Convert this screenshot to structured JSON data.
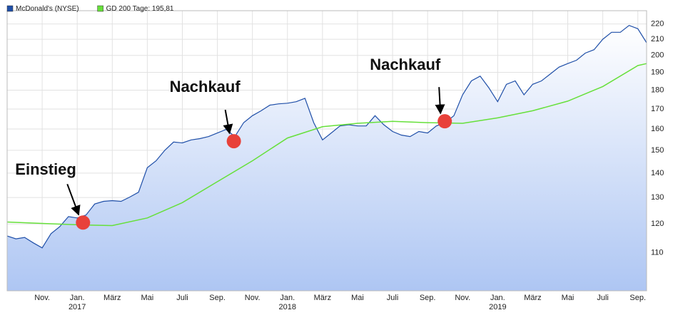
{
  "chart_data": {
    "type": "line",
    "log_scale": true,
    "grid": true,
    "xlim": [
      0,
      36.5
    ],
    "ylim": [
      98,
      229
    ],
    "yticks": [
      110,
      120,
      130,
      140,
      150,
      160,
      170,
      180,
      190,
      200,
      210,
      220
    ],
    "xticks": [
      {
        "value": 2,
        "label": "Nov."
      },
      {
        "value": 4,
        "label": "Jan."
      },
      {
        "value": 6,
        "label": "März"
      },
      {
        "value": 8,
        "label": "Mai"
      },
      {
        "value": 10,
        "label": "Juli"
      },
      {
        "value": 12,
        "label": "Sep."
      },
      {
        "value": 14,
        "label": "Nov."
      },
      {
        "value": 16,
        "label": "Jan."
      },
      {
        "value": 18,
        "label": "März"
      },
      {
        "value": 20,
        "label": "Mai"
      },
      {
        "value": 22,
        "label": "Juli"
      },
      {
        "value": 24,
        "label": "Sep."
      },
      {
        "value": 26,
        "label": "Nov."
      },
      {
        "value": 28,
        "label": "Jan."
      },
      {
        "value": 30,
        "label": "März"
      },
      {
        "value": 32,
        "label": "Mai"
      },
      {
        "value": 34,
        "label": "Juli"
      },
      {
        "value": 36,
        "label": "Sep."
      }
    ],
    "year_labels": [
      {
        "value": 4,
        "label": "2017"
      },
      {
        "value": 16,
        "label": "2018"
      },
      {
        "value": 28,
        "label": "2019"
      }
    ],
    "series": [
      {
        "name": "McDonald's (NYSE)",
        "color": "#1f4fa8",
        "area": true,
        "x": [
          0,
          0.5,
          1,
          1.5,
          2,
          2.5,
          3,
          3.5,
          4,
          4.5,
          5,
          5.5,
          6,
          6.5,
          7,
          7.5,
          8,
          8.5,
          9,
          9.5,
          10,
          10.5,
          11,
          11.5,
          12,
          12.5,
          13,
          13.5,
          14,
          14.5,
          15,
          15.5,
          16,
          16.5,
          17,
          17.5,
          18,
          18.5,
          19,
          19.5,
          20,
          20.5,
          21,
          21.5,
          22,
          22.5,
          23,
          23.5,
          24,
          24.5,
          25,
          25.5,
          26,
          26.5,
          27,
          27.5,
          28,
          28.5,
          29,
          29.5,
          30,
          30.5,
          31,
          31.5,
          32,
          32.5,
          33,
          33.5,
          34,
          34.5,
          35,
          35.5,
          36,
          36.5
        ],
        "values": [
          115.7,
          114.7,
          115.2,
          113.3,
          111.6,
          116.5,
          119,
          122.7,
          122.2,
          123.3,
          127.5,
          128.5,
          128.8,
          128.5,
          130.2,
          132.1,
          142.3,
          145.3,
          150,
          153.8,
          153.4,
          154.8,
          155.4,
          156.4,
          158.1,
          159.8,
          156.4,
          163.1,
          166.6,
          169.1,
          172,
          172.7,
          173,
          173.8,
          175.6,
          163.1,
          154.8,
          158.1,
          161.5,
          162.1,
          161.5,
          161.5,
          166.6,
          162.1,
          158.8,
          157.1,
          156.4,
          158.8,
          158.1,
          161.5,
          163.1,
          166.6,
          177.5,
          185.1,
          187.8,
          181.2,
          173.8,
          183.2,
          185.1,
          177.5,
          183.2,
          185.1,
          189,
          193,
          195.1,
          197.1,
          201.4,
          203.5,
          210,
          214.5,
          214.5,
          219,
          216.8,
          207.8
        ]
      },
      {
        "name": "GD 200 Tage: 195,81",
        "color": "#66e03a",
        "x": [
          0,
          2,
          4,
          6,
          8,
          10,
          12,
          14,
          16,
          18,
          20,
          22,
          24,
          26,
          28,
          30,
          32,
          34,
          36,
          36.5
        ],
        "values": [
          120.7,
          120.2,
          119.7,
          119.4,
          122.2,
          128,
          136.4,
          145.3,
          155.7,
          161.1,
          162.8,
          163.8,
          163.1,
          162.8,
          165.5,
          169.1,
          174.1,
          182,
          193.9,
          195.1
        ]
      }
    ],
    "annotations": [
      {
        "label": "Einstieg",
        "x": 4.33,
        "y": 120.5
      },
      {
        "label": "Nachkauf",
        "x": 12.94,
        "y": 154.2
      },
      {
        "label": "Nachkauf",
        "x": 24.98,
        "y": 163.8
      }
    ]
  }
}
